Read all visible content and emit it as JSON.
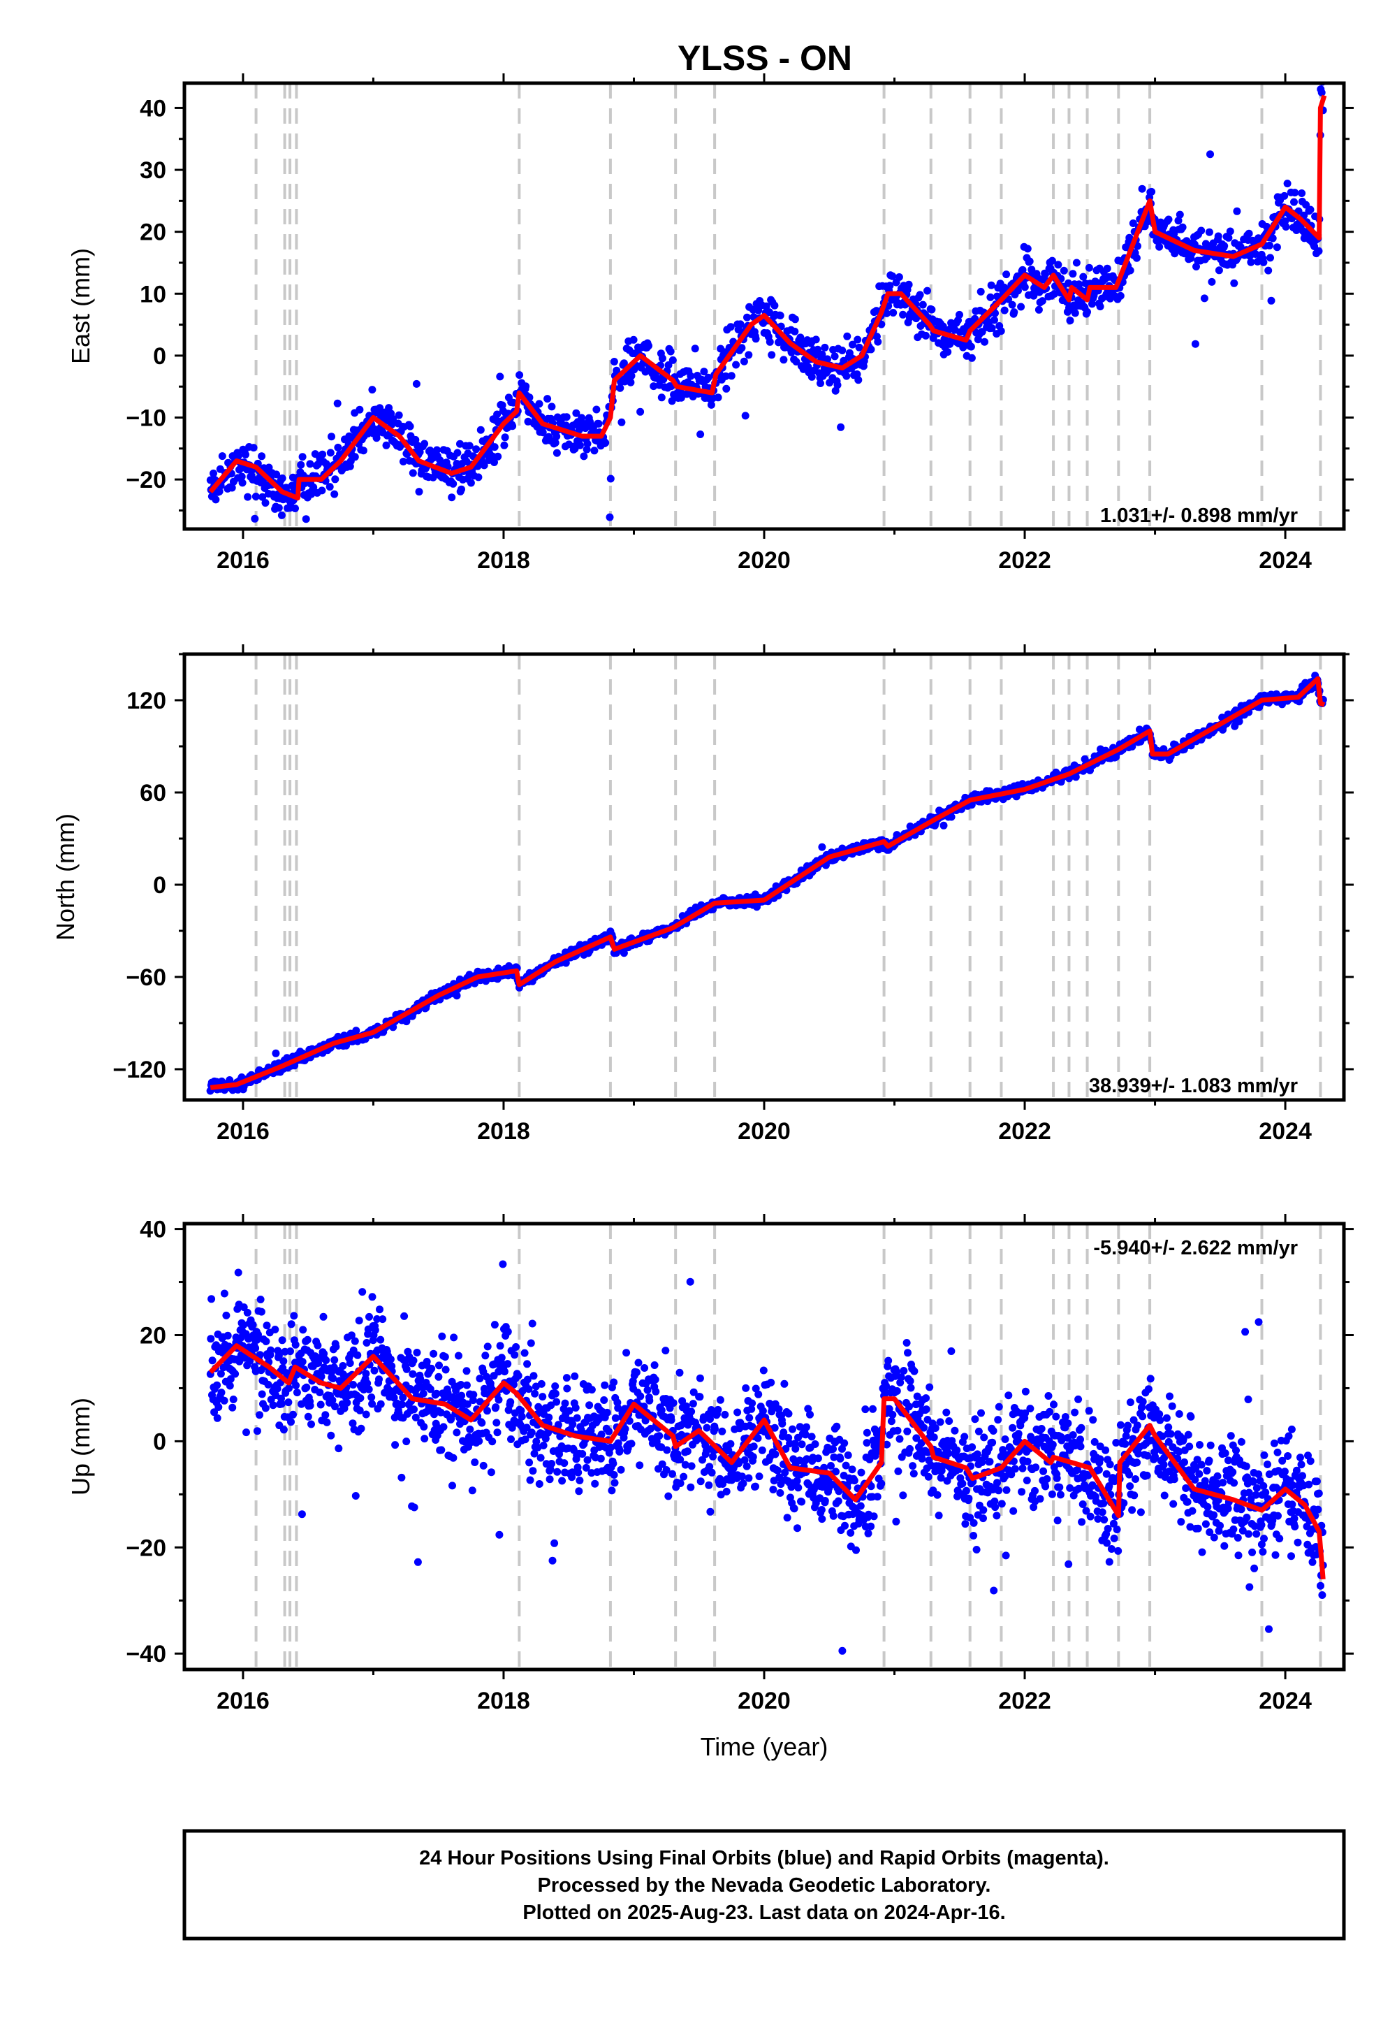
{
  "chart_data": {
    "type": "scatter",
    "title": "YLSS - ON",
    "xlabel": "Time (year)",
    "xlim": [
      2015.55,
      2024.45
    ],
    "x_ticks": [
      "2016",
      "2018",
      "2020",
      "2022",
      "2024"
    ],
    "dot_color": "#0000ff",
    "model_color": "#ff0000",
    "event_color": "#c8c8c8",
    "event_lines": [
      2016.1,
      2016.32,
      2016.36,
      2016.41,
      2018.12,
      2018.82,
      2019.32,
      2019.62,
      2020.92,
      2021.28,
      2021.58,
      2021.82,
      2022.22,
      2022.34,
      2022.48,
      2022.72,
      2022.96,
      2023.82,
      2024.27
    ],
    "panels": [
      {
        "name": "East",
        "ylabel": "East (mm)",
        "ylim": [
          -28,
          44
        ],
        "y_ticks": [
          -20,
          -10,
          0,
          10,
          20,
          30,
          40
        ],
        "rate": "1.031+/- 0.898 mm/yr",
        "rate_position": "bottom-right",
        "model": [
          [
            2015.75,
            -22
          ],
          [
            2015.95,
            -17
          ],
          [
            2016.1,
            -18
          ],
          [
            2016.3,
            -22
          ],
          [
            2016.42,
            -23
          ],
          [
            2016.43,
            -20
          ],
          [
            2016.6,
            -20
          ],
          [
            2016.75,
            -17
          ],
          [
            2017.0,
            -10
          ],
          [
            2017.2,
            -13
          ],
          [
            2017.35,
            -17
          ],
          [
            2017.6,
            -19
          ],
          [
            2017.75,
            -18
          ],
          [
            2018.0,
            -11
          ],
          [
            2018.1,
            -9
          ],
          [
            2018.12,
            -6
          ],
          [
            2018.3,
            -11
          ],
          [
            2018.6,
            -13
          ],
          [
            2018.75,
            -13
          ],
          [
            2018.82,
            -10
          ],
          [
            2018.85,
            -4
          ],
          [
            2019.05,
            0
          ],
          [
            2019.3,
            -4
          ],
          [
            2019.33,
            -5
          ],
          [
            2019.6,
            -6
          ],
          [
            2019.63,
            -3
          ],
          [
            2019.9,
            5
          ],
          [
            2020.0,
            6.5
          ],
          [
            2020.2,
            2
          ],
          [
            2020.4,
            -1
          ],
          [
            2020.6,
            -2
          ],
          [
            2020.75,
            0
          ],
          [
            2020.9,
            7
          ],
          [
            2020.95,
            10
          ],
          [
            2021.05,
            10
          ],
          [
            2021.27,
            5
          ],
          [
            2021.3,
            4
          ],
          [
            2021.55,
            2.5
          ],
          [
            2021.58,
            4
          ],
          [
            2021.82,
            9
          ],
          [
            2022.0,
            13
          ],
          [
            2022.15,
            11
          ],
          [
            2022.22,
            13
          ],
          [
            2022.34,
            9
          ],
          [
            2022.36,
            11
          ],
          [
            2022.48,
            9
          ],
          [
            2022.5,
            11
          ],
          [
            2022.7,
            11
          ],
          [
            2022.72,
            12
          ],
          [
            2022.96,
            25
          ],
          [
            2023.0,
            20
          ],
          [
            2023.3,
            17
          ],
          [
            2023.6,
            16
          ],
          [
            2023.82,
            18
          ],
          [
            2024.0,
            24
          ],
          [
            2024.12,
            22
          ],
          [
            2024.26,
            19
          ],
          [
            2024.27,
            40
          ],
          [
            2024.3,
            42
          ]
        ],
        "dots": {
          "start": 2015.75,
          "end": 2024.29,
          "count": 1500,
          "noise": 1.9,
          "outlier_rate": 0.02,
          "outlier_scale": 4,
          "seed": 11
        }
      },
      {
        "name": "North",
        "ylabel": "North (mm)",
        "ylim": [
          -140,
          150
        ],
        "y_ticks": [
          -120,
          -60,
          0,
          60,
          120
        ],
        "rate": "38.939+/- 1.083 mm/yr",
        "rate_position": "bottom-right",
        "model": [
          [
            2015.75,
            -132
          ],
          [
            2015.95,
            -130
          ],
          [
            2016.3,
            -118
          ],
          [
            2016.7,
            -103
          ],
          [
            2017.0,
            -96
          ],
          [
            2017.5,
            -72
          ],
          [
            2017.8,
            -60
          ],
          [
            2018.1,
            -56
          ],
          [
            2018.12,
            -65
          ],
          [
            2018.4,
            -50
          ],
          [
            2018.82,
            -34
          ],
          [
            2018.85,
            -42
          ],
          [
            2019.3,
            -28
          ],
          [
            2019.62,
            -12
          ],
          [
            2020.0,
            -10
          ],
          [
            2020.5,
            18
          ],
          [
            2020.92,
            28
          ],
          [
            2020.95,
            25
          ],
          [
            2021.3,
            42
          ],
          [
            2021.58,
            55
          ],
          [
            2022.0,
            62
          ],
          [
            2022.34,
            72
          ],
          [
            2022.72,
            88
          ],
          [
            2022.96,
            100
          ],
          [
            2022.98,
            85
          ],
          [
            2023.1,
            85
          ],
          [
            2023.82,
            120
          ],
          [
            2024.1,
            122
          ],
          [
            2024.25,
            134
          ],
          [
            2024.27,
            118
          ],
          [
            2024.3,
            117
          ]
        ],
        "dots": {
          "start": 2015.75,
          "end": 2024.29,
          "count": 1500,
          "noise": 1.8,
          "outlier_rate": 0.01,
          "outlier_scale": 3,
          "seed": 23
        }
      },
      {
        "name": "Up",
        "ylabel": "Up (mm)",
        "ylim": [
          -43,
          41
        ],
        "y_ticks": [
          -40,
          -20,
          0,
          20,
          40
        ],
        "rate": "-5.940+/- 2.622 mm/yr",
        "rate_position": "top-right",
        "model": [
          [
            2015.75,
            13
          ],
          [
            2015.95,
            18
          ],
          [
            2016.2,
            14
          ],
          [
            2016.35,
            11
          ],
          [
            2016.4,
            14
          ],
          [
            2016.6,
            11
          ],
          [
            2016.75,
            10
          ],
          [
            2017.0,
            16
          ],
          [
            2017.3,
            8
          ],
          [
            2017.55,
            7
          ],
          [
            2017.75,
            4
          ],
          [
            2018.0,
            11
          ],
          [
            2018.1,
            9
          ],
          [
            2018.3,
            3
          ],
          [
            2018.55,
            1
          ],
          [
            2018.82,
            0
          ],
          [
            2019.0,
            7
          ],
          [
            2019.3,
            1
          ],
          [
            2019.32,
            -1
          ],
          [
            2019.5,
            2
          ],
          [
            2019.75,
            -4
          ],
          [
            2020.0,
            4
          ],
          [
            2020.2,
            -5
          ],
          [
            2020.5,
            -6
          ],
          [
            2020.7,
            -11
          ],
          [
            2020.9,
            -4
          ],
          [
            2020.92,
            8
          ],
          [
            2021.0,
            8
          ],
          [
            2021.28,
            -1
          ],
          [
            2021.3,
            -3
          ],
          [
            2021.55,
            -5
          ],
          [
            2021.6,
            -7
          ],
          [
            2021.82,
            -5
          ],
          [
            2022.0,
            0
          ],
          [
            2022.2,
            -4
          ],
          [
            2022.22,
            -3
          ],
          [
            2022.5,
            -5
          ],
          [
            2022.72,
            -14
          ],
          [
            2022.73,
            -4
          ],
          [
            2022.96,
            3
          ],
          [
            2023.0,
            1
          ],
          [
            2023.3,
            -9
          ],
          [
            2023.6,
            -11
          ],
          [
            2023.82,
            -13
          ],
          [
            2024.0,
            -9
          ],
          [
            2024.15,
            -12
          ],
          [
            2024.26,
            -17
          ],
          [
            2024.29,
            -26
          ]
        ],
        "dots": {
          "start": 2015.75,
          "end": 2024.29,
          "count": 2200,
          "noise": 5.2,
          "outlier_rate": 0.015,
          "outlier_scale": 3,
          "seed": 37
        }
      }
    ]
  },
  "footer": {
    "line1": "24 Hour Positions Using Final Orbits (blue) and Rapid Orbits (magenta).",
    "line2": "Processed by the Nevada Geodetic Laboratory.",
    "line3": "Plotted on 2025-Aug-23. Last data on 2024-Apr-16."
  }
}
